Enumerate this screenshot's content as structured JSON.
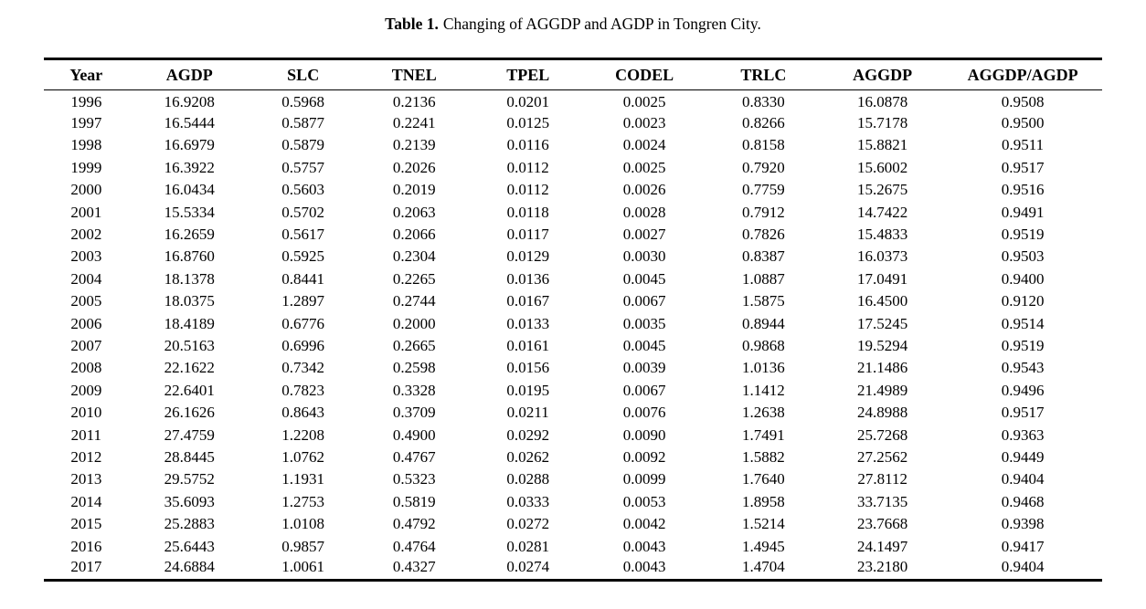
{
  "page": {
    "background": "#ffffff",
    "text_color": "#000000",
    "rule_color": "#000000"
  },
  "caption": {
    "label": "Table 1.",
    "text": "Changing of AGGDP and AGDP in Tongren City."
  },
  "table": {
    "columns": [
      "Year",
      "AGDP",
      "SLC",
      "TNEL",
      "TPEL",
      "CODEL",
      "TRLC",
      "AGGDP",
      "AGGDP/AGDP"
    ],
    "rows": [
      [
        "1996",
        "16.9208",
        "0.5968",
        "0.2136",
        "0.0201",
        "0.0025",
        "0.8330",
        "16.0878",
        "0.9508"
      ],
      [
        "1997",
        "16.5444",
        "0.5877",
        "0.2241",
        "0.0125",
        "0.0023",
        "0.8266",
        "15.7178",
        "0.9500"
      ],
      [
        "1998",
        "16.6979",
        "0.5879",
        "0.2139",
        "0.0116",
        "0.0024",
        "0.8158",
        "15.8821",
        "0.9511"
      ],
      [
        "1999",
        "16.3922",
        "0.5757",
        "0.2026",
        "0.0112",
        "0.0025",
        "0.7920",
        "15.6002",
        "0.9517"
      ],
      [
        "2000",
        "16.0434",
        "0.5603",
        "0.2019",
        "0.0112",
        "0.0026",
        "0.7759",
        "15.2675",
        "0.9516"
      ],
      [
        "2001",
        "15.5334",
        "0.5702",
        "0.2063",
        "0.0118",
        "0.0028",
        "0.7912",
        "14.7422",
        "0.9491"
      ],
      [
        "2002",
        "16.2659",
        "0.5617",
        "0.2066",
        "0.0117",
        "0.0027",
        "0.7826",
        "15.4833",
        "0.9519"
      ],
      [
        "2003",
        "16.8760",
        "0.5925",
        "0.2304",
        "0.0129",
        "0.0030",
        "0.8387",
        "16.0373",
        "0.9503"
      ],
      [
        "2004",
        "18.1378",
        "0.8441",
        "0.2265",
        "0.0136",
        "0.0045",
        "1.0887",
        "17.0491",
        "0.9400"
      ],
      [
        "2005",
        "18.0375",
        "1.2897",
        "0.2744",
        "0.0167",
        "0.0067",
        "1.5875",
        "16.4500",
        "0.9120"
      ],
      [
        "2006",
        "18.4189",
        "0.6776",
        "0.2000",
        "0.0133",
        "0.0035",
        "0.8944",
        "17.5245",
        "0.9514"
      ],
      [
        "2007",
        "20.5163",
        "0.6996",
        "0.2665",
        "0.0161",
        "0.0045",
        "0.9868",
        "19.5294",
        "0.9519"
      ],
      [
        "2008",
        "22.1622",
        "0.7342",
        "0.2598",
        "0.0156",
        "0.0039",
        "1.0136",
        "21.1486",
        "0.9543"
      ],
      [
        "2009",
        "22.6401",
        "0.7823",
        "0.3328",
        "0.0195",
        "0.0067",
        "1.1412",
        "21.4989",
        "0.9496"
      ],
      [
        "2010",
        "26.1626",
        "0.8643",
        "0.3709",
        "0.0211",
        "0.0076",
        "1.2638",
        "24.8988",
        "0.9517"
      ],
      [
        "2011",
        "27.4759",
        "1.2208",
        "0.4900",
        "0.0292",
        "0.0090",
        "1.7491",
        "25.7268",
        "0.9363"
      ],
      [
        "2012",
        "28.8445",
        "1.0762",
        "0.4767",
        "0.0262",
        "0.0092",
        "1.5882",
        "27.2562",
        "0.9449"
      ],
      [
        "2013",
        "29.5752",
        "1.1931",
        "0.5323",
        "0.0288",
        "0.0099",
        "1.7640",
        "27.8112",
        "0.9404"
      ],
      [
        "2014",
        "35.6093",
        "1.2753",
        "0.5819",
        "0.0333",
        "0.0053",
        "1.8958",
        "33.7135",
        "0.9468"
      ],
      [
        "2015",
        "25.2883",
        "1.0108",
        "0.4792",
        "0.0272",
        "0.0042",
        "1.5214",
        "23.7668",
        "0.9398"
      ],
      [
        "2016",
        "25.6443",
        "0.9857",
        "0.4764",
        "0.0281",
        "0.0043",
        "1.4945",
        "24.1497",
        "0.9417"
      ],
      [
        "2017",
        "24.6884",
        "1.0061",
        "0.4327",
        "0.0274",
        "0.0043",
        "1.4704",
        "23.2180",
        "0.9404"
      ]
    ]
  }
}
